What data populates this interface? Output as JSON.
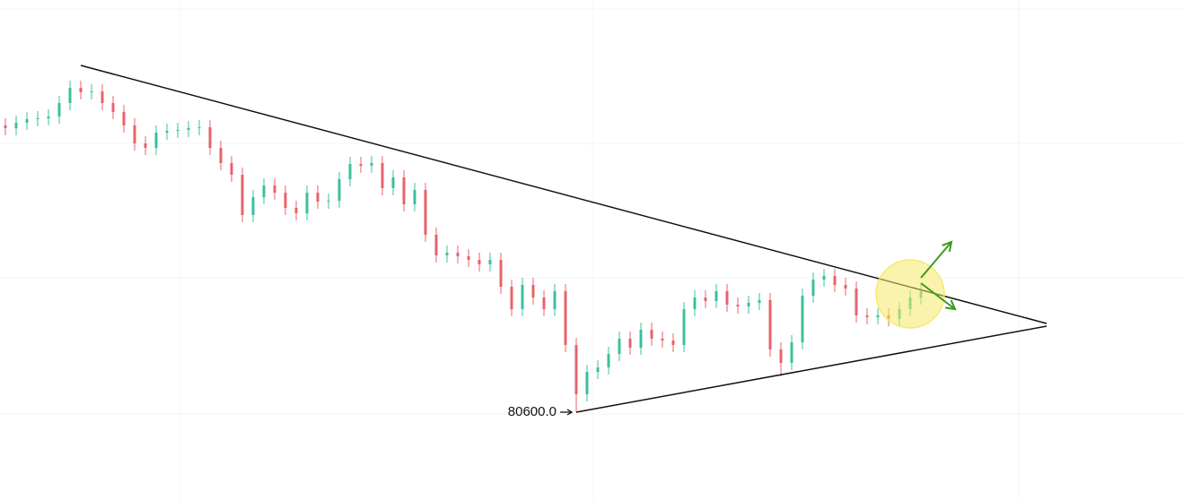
{
  "chart_data": {
    "type": "candlestick",
    "up_color": "#3dbf9c",
    "down_color": "#e8636b",
    "line_color": "#111111",
    "xlim": [
      -0.5,
      109.33
    ],
    "ylim": [
      78640,
      89800
    ],
    "open": [
      87000,
      86940,
      87060,
      87140,
      87160,
      87200,
      87500,
      87840,
      87740,
      87760,
      87500,
      87300,
      87000,
      86600,
      86500,
      86840,
      86880,
      86900,
      86940,
      86960,
      86500,
      86160,
      85900,
      85000,
      85400,
      85660,
      85500,
      85160,
      85040,
      85500,
      85300,
      85320,
      85800,
      86140,
      86100,
      86160,
      85600,
      85840,
      85240,
      85560,
      84560,
      84100,
      84160,
      84080,
      84000,
      83900,
      84000,
      83400,
      82900,
      83440,
      83160,
      82900,
      83300,
      82100,
      81000,
      81500,
      81600,
      81900,
      82240,
      82040,
      82440,
      82240,
      82200,
      82100,
      82900,
      83160,
      83080,
      83300,
      83000,
      82960,
      83040,
      83100,
      82000,
      81700,
      82160,
      83200,
      83560,
      83640,
      83440,
      83360,
      82760,
      82720,
      82760,
      82680,
      82900,
      83160
    ],
    "high": [
      87160,
      87220,
      87300,
      87320,
      87360,
      87660,
      88000,
      88000,
      87920,
      87920,
      87660,
      87460,
      87160,
      86760,
      87000,
      87040,
      87060,
      87100,
      87120,
      87120,
      86660,
      86320,
      86060,
      85560,
      85820,
      85820,
      85660,
      85320,
      85660,
      85660,
      85480,
      85960,
      86300,
      86300,
      86320,
      86320,
      86000,
      86000,
      85720,
      85720,
      84720,
      84320,
      84320,
      84240,
      84160,
      84160,
      84160,
      83560,
      83600,
      83600,
      83320,
      83460,
      83460,
      82260,
      81660,
      81760,
      82060,
      82400,
      82400,
      82600,
      82600,
      82400,
      82360,
      83060,
      83320,
      83320,
      83460,
      83460,
      83160,
      83200,
      83260,
      83260,
      82160,
      82320,
      83360,
      83720,
      83800,
      83800,
      83600,
      83520,
      82920,
      82920,
      82920,
      83060,
      83320,
      83460
    ],
    "low": [
      86780,
      86780,
      86900,
      86980,
      87000,
      87040,
      87340,
      87580,
      87580,
      87340,
      87140,
      86840,
      86440,
      86340,
      86340,
      86680,
      86720,
      86740,
      86780,
      86340,
      86000,
      85740,
      84840,
      84840,
      85240,
      85340,
      85000,
      84880,
      84880,
      85140,
      85140,
      85160,
      85640,
      85940,
      85940,
      85440,
      85440,
      85080,
      85080,
      84400,
      83940,
      83940,
      83920,
      83840,
      83740,
      83740,
      83240,
      82740,
      82740,
      83000,
      82740,
      82740,
      81940,
      80600,
      80840,
      81340,
      81440,
      81740,
      81880,
      81880,
      82080,
      82040,
      81940,
      81940,
      82740,
      82920,
      82920,
      82840,
      82800,
      82800,
      82880,
      81840,
      81400,
      81540,
      82000,
      83040,
      83400,
      83280,
      83200,
      82600,
      82560,
      82560,
      82520,
      82520,
      82740,
      83000
    ],
    "close": [
      86940,
      87060,
      87140,
      87160,
      87200,
      87500,
      87840,
      87740,
      87760,
      87500,
      87300,
      87000,
      86600,
      86500,
      86840,
      86880,
      86900,
      86940,
      86960,
      86500,
      86160,
      85900,
      85000,
      85400,
      85660,
      85500,
      85160,
      85040,
      85500,
      85300,
      85320,
      85800,
      86140,
      86100,
      86160,
      85600,
      85840,
      85240,
      85560,
      84560,
      84100,
      84160,
      84080,
      84000,
      83900,
      84000,
      83400,
      82900,
      83440,
      83160,
      82900,
      83300,
      82100,
      81000,
      81500,
      81600,
      81900,
      82240,
      82040,
      82440,
      82240,
      82200,
      82100,
      82900,
      83160,
      83080,
      83300,
      83000,
      82960,
      83040,
      83100,
      82000,
      81700,
      82160,
      83200,
      83560,
      83640,
      83440,
      83360,
      82760,
      82720,
      82760,
      82680,
      82900,
      83160,
      83300
    ],
    "trendlines": [
      {
        "from": [
          7,
          88340
        ],
        "to": [
          96.67,
          82580
        ]
      },
      {
        "from": [
          53,
          80600
        ],
        "to": [
          96.67,
          82520
        ]
      }
    ],
    "annotation": {
      "x": 53,
      "value": 80600,
      "label": "80600.0"
    },
    "highlight": {
      "x": 84,
      "y": 83240,
      "color": "#f5e96a",
      "arrow_color": "#3a9a1e"
    }
  }
}
